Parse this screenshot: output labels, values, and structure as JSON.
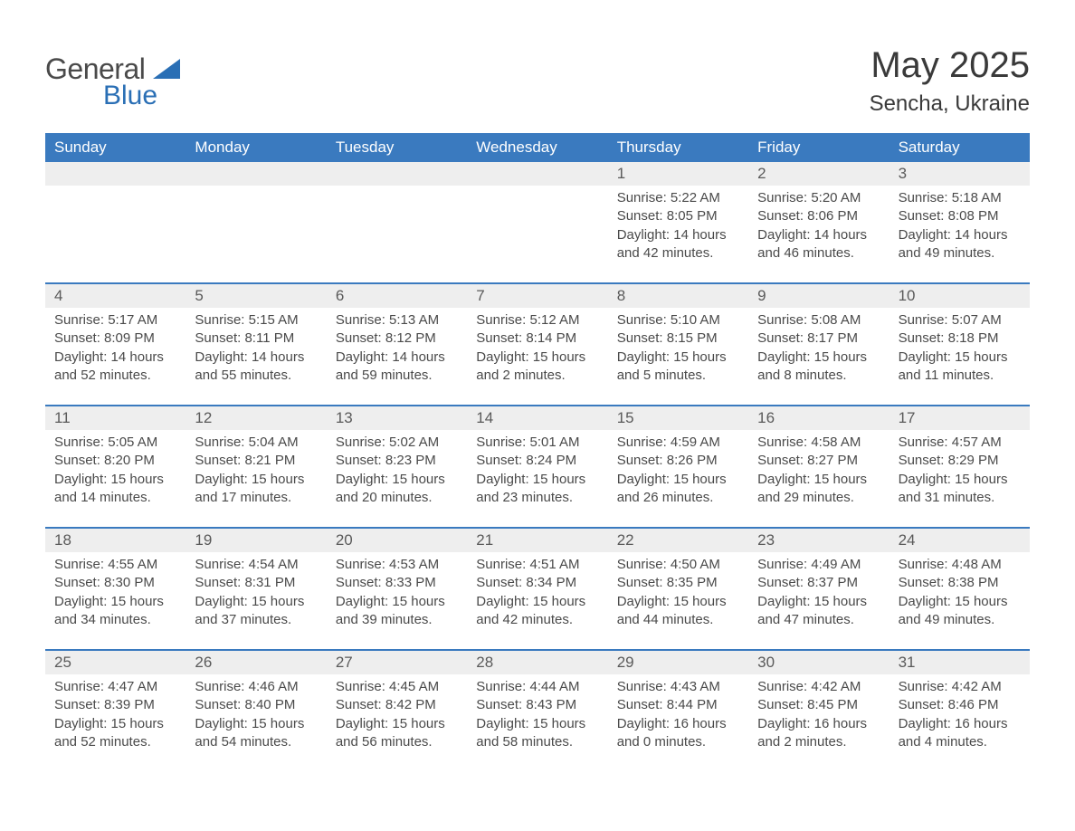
{
  "logo": {
    "word1": "General",
    "word2": "Blue"
  },
  "title": "May 2025",
  "subtitle": "Sencha, Ukraine",
  "colors": {
    "header_bg": "#3a7abf",
    "header_text": "#ffffff",
    "daynum_bg": "#eeeeee",
    "body_text": "#4a4a4a",
    "accent": "#2a6fb5"
  },
  "day_names": [
    "Sunday",
    "Monday",
    "Tuesday",
    "Wednesday",
    "Thursday",
    "Friday",
    "Saturday"
  ],
  "weeks": [
    [
      null,
      null,
      null,
      null,
      {
        "n": "1",
        "sr": "Sunrise: 5:22 AM",
        "ss": "Sunset: 8:05 PM",
        "dl": "Daylight: 14 hours and 42 minutes."
      },
      {
        "n": "2",
        "sr": "Sunrise: 5:20 AM",
        "ss": "Sunset: 8:06 PM",
        "dl": "Daylight: 14 hours and 46 minutes."
      },
      {
        "n": "3",
        "sr": "Sunrise: 5:18 AM",
        "ss": "Sunset: 8:08 PM",
        "dl": "Daylight: 14 hours and 49 minutes."
      }
    ],
    [
      {
        "n": "4",
        "sr": "Sunrise: 5:17 AM",
        "ss": "Sunset: 8:09 PM",
        "dl": "Daylight: 14 hours and 52 minutes."
      },
      {
        "n": "5",
        "sr": "Sunrise: 5:15 AM",
        "ss": "Sunset: 8:11 PM",
        "dl": "Daylight: 14 hours and 55 minutes."
      },
      {
        "n": "6",
        "sr": "Sunrise: 5:13 AM",
        "ss": "Sunset: 8:12 PM",
        "dl": "Daylight: 14 hours and 59 minutes."
      },
      {
        "n": "7",
        "sr": "Sunrise: 5:12 AM",
        "ss": "Sunset: 8:14 PM",
        "dl": "Daylight: 15 hours and 2 minutes."
      },
      {
        "n": "8",
        "sr": "Sunrise: 5:10 AM",
        "ss": "Sunset: 8:15 PM",
        "dl": "Daylight: 15 hours and 5 minutes."
      },
      {
        "n": "9",
        "sr": "Sunrise: 5:08 AM",
        "ss": "Sunset: 8:17 PM",
        "dl": "Daylight: 15 hours and 8 minutes."
      },
      {
        "n": "10",
        "sr": "Sunrise: 5:07 AM",
        "ss": "Sunset: 8:18 PM",
        "dl": "Daylight: 15 hours and 11 minutes."
      }
    ],
    [
      {
        "n": "11",
        "sr": "Sunrise: 5:05 AM",
        "ss": "Sunset: 8:20 PM",
        "dl": "Daylight: 15 hours and 14 minutes."
      },
      {
        "n": "12",
        "sr": "Sunrise: 5:04 AM",
        "ss": "Sunset: 8:21 PM",
        "dl": "Daylight: 15 hours and 17 minutes."
      },
      {
        "n": "13",
        "sr": "Sunrise: 5:02 AM",
        "ss": "Sunset: 8:23 PM",
        "dl": "Daylight: 15 hours and 20 minutes."
      },
      {
        "n": "14",
        "sr": "Sunrise: 5:01 AM",
        "ss": "Sunset: 8:24 PM",
        "dl": "Daylight: 15 hours and 23 minutes."
      },
      {
        "n": "15",
        "sr": "Sunrise: 4:59 AM",
        "ss": "Sunset: 8:26 PM",
        "dl": "Daylight: 15 hours and 26 minutes."
      },
      {
        "n": "16",
        "sr": "Sunrise: 4:58 AM",
        "ss": "Sunset: 8:27 PM",
        "dl": "Daylight: 15 hours and 29 minutes."
      },
      {
        "n": "17",
        "sr": "Sunrise: 4:57 AM",
        "ss": "Sunset: 8:29 PM",
        "dl": "Daylight: 15 hours and 31 minutes."
      }
    ],
    [
      {
        "n": "18",
        "sr": "Sunrise: 4:55 AM",
        "ss": "Sunset: 8:30 PM",
        "dl": "Daylight: 15 hours and 34 minutes."
      },
      {
        "n": "19",
        "sr": "Sunrise: 4:54 AM",
        "ss": "Sunset: 8:31 PM",
        "dl": "Daylight: 15 hours and 37 minutes."
      },
      {
        "n": "20",
        "sr": "Sunrise: 4:53 AM",
        "ss": "Sunset: 8:33 PM",
        "dl": "Daylight: 15 hours and 39 minutes."
      },
      {
        "n": "21",
        "sr": "Sunrise: 4:51 AM",
        "ss": "Sunset: 8:34 PM",
        "dl": "Daylight: 15 hours and 42 minutes."
      },
      {
        "n": "22",
        "sr": "Sunrise: 4:50 AM",
        "ss": "Sunset: 8:35 PM",
        "dl": "Daylight: 15 hours and 44 minutes."
      },
      {
        "n": "23",
        "sr": "Sunrise: 4:49 AM",
        "ss": "Sunset: 8:37 PM",
        "dl": "Daylight: 15 hours and 47 minutes."
      },
      {
        "n": "24",
        "sr": "Sunrise: 4:48 AM",
        "ss": "Sunset: 8:38 PM",
        "dl": "Daylight: 15 hours and 49 minutes."
      }
    ],
    [
      {
        "n": "25",
        "sr": "Sunrise: 4:47 AM",
        "ss": "Sunset: 8:39 PM",
        "dl": "Daylight: 15 hours and 52 minutes."
      },
      {
        "n": "26",
        "sr": "Sunrise: 4:46 AM",
        "ss": "Sunset: 8:40 PM",
        "dl": "Daylight: 15 hours and 54 minutes."
      },
      {
        "n": "27",
        "sr": "Sunrise: 4:45 AM",
        "ss": "Sunset: 8:42 PM",
        "dl": "Daylight: 15 hours and 56 minutes."
      },
      {
        "n": "28",
        "sr": "Sunrise: 4:44 AM",
        "ss": "Sunset: 8:43 PM",
        "dl": "Daylight: 15 hours and 58 minutes."
      },
      {
        "n": "29",
        "sr": "Sunrise: 4:43 AM",
        "ss": "Sunset: 8:44 PM",
        "dl": "Daylight: 16 hours and 0 minutes."
      },
      {
        "n": "30",
        "sr": "Sunrise: 4:42 AM",
        "ss": "Sunset: 8:45 PM",
        "dl": "Daylight: 16 hours and 2 minutes."
      },
      {
        "n": "31",
        "sr": "Sunrise: 4:42 AM",
        "ss": "Sunset: 8:46 PM",
        "dl": "Daylight: 16 hours and 4 minutes."
      }
    ]
  ]
}
